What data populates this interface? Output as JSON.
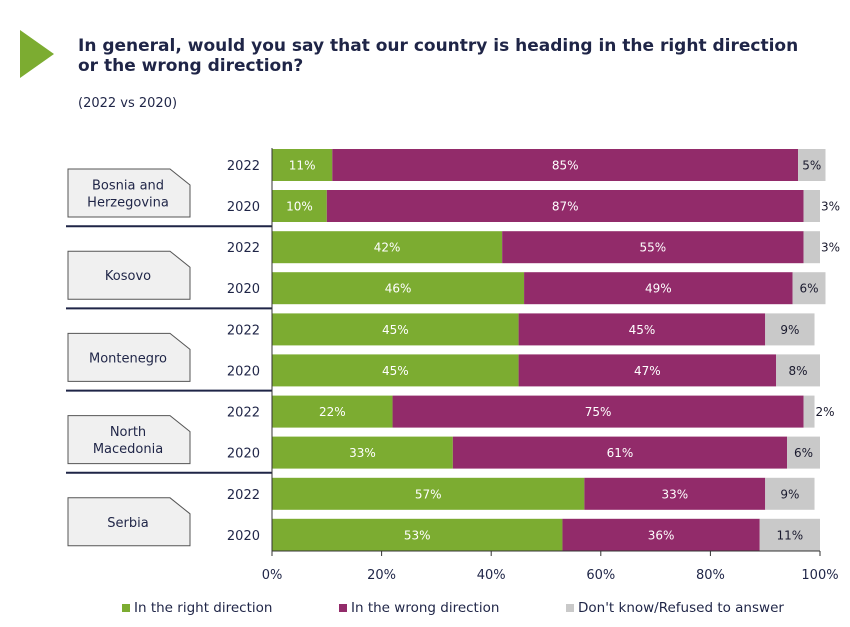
{
  "title": "In general, would you say that our country is heading in the right direction or the wrong direction?",
  "subtitle": "(2022 vs 2020)",
  "colors": {
    "right": "#7cac31",
    "wrong": "#922b6a",
    "dont_know": "#c9c9c9",
    "accent": "#7cac31",
    "label_box_bg": "#f0f0f0",
    "label_box_border": "#555555"
  },
  "chart_data": {
    "type": "bar",
    "orientation": "horizontal",
    "stacked": true,
    "title": "In general, would you say that our country is heading in the right direction or the wrong direction?",
    "subtitle": "(2022 vs 2020)",
    "xlim": [
      0,
      100
    ],
    "xticks": [
      "0%",
      "20%",
      "40%",
      "60%",
      "80%",
      "100%"
    ],
    "legend": [
      "In the right direction",
      "In the wrong direction",
      "Don't know/Refused to answer"
    ],
    "legend_position": "bottom",
    "groups": [
      {
        "label": "Bosnia and Herzegovina",
        "label_lines": [
          "Bosnia and",
          "Herzegovina"
        ],
        "rows": [
          {
            "year": "2022",
            "right": 11,
            "wrong": 85,
            "dont_know": 5
          },
          {
            "year": "2020",
            "right": 10,
            "wrong": 87,
            "dont_know": 3
          }
        ]
      },
      {
        "label": "Kosovo",
        "label_lines": [
          "Kosovo"
        ],
        "rows": [
          {
            "year": "2022",
            "right": 42,
            "wrong": 55,
            "dont_know": 3
          },
          {
            "year": "2020",
            "right": 46,
            "wrong": 49,
            "dont_know": 6
          }
        ]
      },
      {
        "label": "Montenegro",
        "label_lines": [
          "Montenegro"
        ],
        "rows": [
          {
            "year": "2022",
            "right": 45,
            "wrong": 45,
            "dont_know": 9
          },
          {
            "year": "2020",
            "right": 45,
            "wrong": 47,
            "dont_know": 8
          }
        ]
      },
      {
        "label": "North Macedonia",
        "label_lines": [
          "North",
          "Macedonia"
        ],
        "rows": [
          {
            "year": "2022",
            "right": 22,
            "wrong": 75,
            "dont_know": 2
          },
          {
            "year": "2020",
            "right": 33,
            "wrong": 61,
            "dont_know": 6
          }
        ]
      },
      {
        "label": "Serbia",
        "label_lines": [
          "Serbia"
        ],
        "rows": [
          {
            "year": "2022",
            "right": 57,
            "wrong": 33,
            "dont_know": 9
          },
          {
            "year": "2020",
            "right": 53,
            "wrong": 36,
            "dont_know": 11
          }
        ]
      }
    ]
  }
}
